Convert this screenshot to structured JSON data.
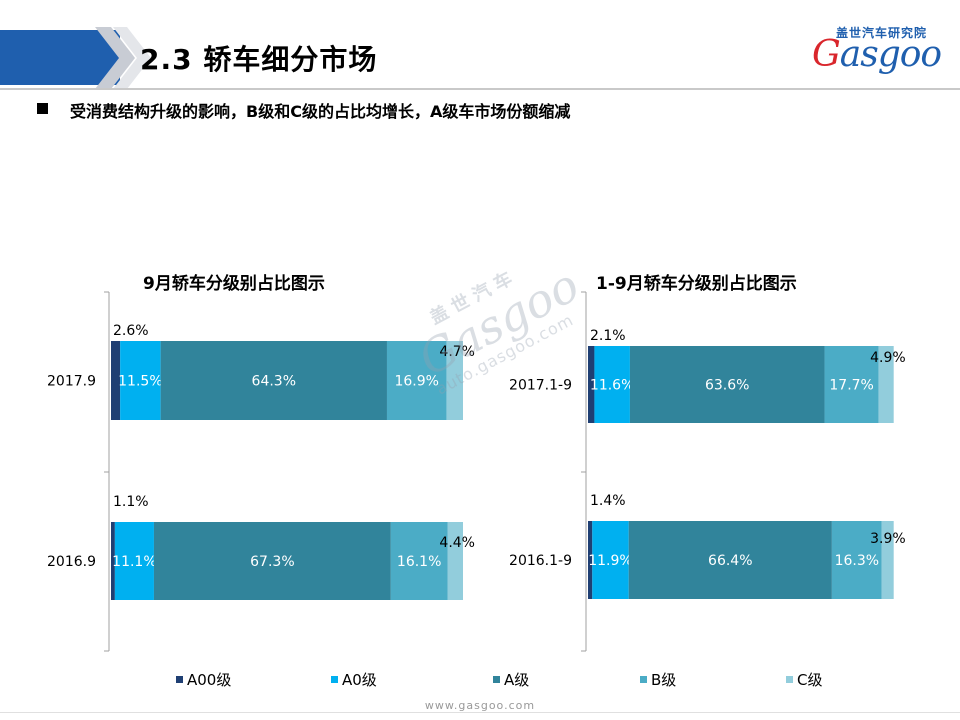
{
  "header": {
    "title": "2.3 轿车细分市场"
  },
  "logo": {
    "cn": "盖世汽车研究院",
    "en_lead": "G",
    "en_rest": "asgoo"
  },
  "bullet": {
    "text": "受消费结构升级的影响，B级和C级的占比均增长，A级车市场份额缩减"
  },
  "watermark": {
    "cn": "盖世汽车",
    "en": "Gasgoo",
    "url": "auto.gasgoo.com"
  },
  "footer": {
    "url": "www.gasgoo.com"
  },
  "colors": {
    "A00": "#1f3f73",
    "A0": "#00b0f0",
    "A": "#31849b",
    "B": "#4bacc6",
    "C": "#92cddc",
    "accent": "#1f5fae"
  },
  "legend": [
    {
      "label": "A00级",
      "color": "#1f3f73"
    },
    {
      "label": "A0级",
      "color": "#00b0f0"
    },
    {
      "label": "A级",
      "color": "#31849b"
    },
    {
      "label": "B级",
      "color": "#4bacc6"
    },
    {
      "label": "C级",
      "color": "#92cddc"
    }
  ],
  "chart_data": [
    {
      "type": "bar",
      "orientation": "horizontal-stacked-100",
      "title": "9月轿车分级别占比图示",
      "categories": [
        "2017.9",
        "2016.9"
      ],
      "xlim": [
        0,
        100
      ],
      "series": [
        {
          "name": "A00级",
          "values": [
            2.6,
            1.1
          ],
          "labels": [
            "2.6%",
            "1.1%"
          ]
        },
        {
          "name": "A0级",
          "values": [
            11.5,
            11.1
          ],
          "labels": [
            "11.5%",
            "11.1%"
          ]
        },
        {
          "name": "A级",
          "values": [
            64.3,
            67.3
          ],
          "labels": [
            "64.3%",
            "67.3%"
          ]
        },
        {
          "name": "B级",
          "values": [
            16.9,
            16.1
          ],
          "labels": [
            "16.9%",
            "16.1%"
          ]
        },
        {
          "name": "C级",
          "values": [
            4.7,
            4.4
          ],
          "labels": [
            "4.7%",
            "4.4%"
          ]
        }
      ]
    },
    {
      "type": "bar",
      "orientation": "horizontal-stacked-100",
      "title": "1-9月轿车分级别占比图示",
      "categories": [
        "2017.1-9",
        "2016.1-9"
      ],
      "xlim": [
        0,
        100
      ],
      "series": [
        {
          "name": "A00级",
          "values": [
            2.1,
            1.4
          ],
          "labels": [
            "2.1%",
            "1.4%"
          ]
        },
        {
          "name": "A0级",
          "values": [
            11.6,
            11.9
          ],
          "labels": [
            "11.6%",
            "11.9%"
          ]
        },
        {
          "name": "A级",
          "values": [
            63.6,
            66.4
          ],
          "labels": [
            "63.6%",
            "66.4%"
          ]
        },
        {
          "name": "B级",
          "values": [
            17.7,
            16.3
          ],
          "labels": [
            "17.7%",
            "16.3%"
          ]
        },
        {
          "name": "C级",
          "values": [
            4.9,
            3.9
          ],
          "labels": [
            "4.9%",
            "3.9%"
          ]
        }
      ]
    }
  ]
}
